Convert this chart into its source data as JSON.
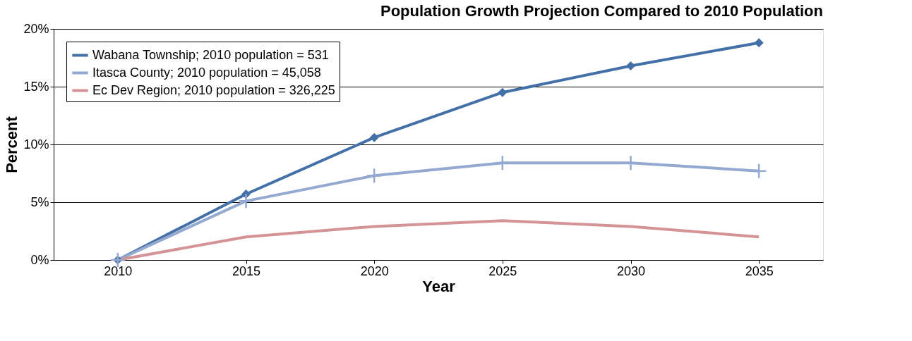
{
  "chart_data": {
    "type": "line",
    "title": "Population Growth Projection Compared to 2010 Population",
    "xlabel": "Year",
    "ylabel": "Percent",
    "categories": [
      "2010",
      "2015",
      "2020",
      "2025",
      "2030",
      "2035"
    ],
    "series": [
      {
        "name": "Wabana Township; 2010 population = 531",
        "color": "#4470a8",
        "marker": "diamond",
        "values": [
          0,
          5.7,
          10.6,
          14.5,
          16.8,
          18.8
        ]
      },
      {
        "name": "Itasca County; 2010 population = 45,058",
        "color": "#93a9d0",
        "marker": "cross",
        "values": [
          0,
          5.1,
          7.3,
          8.4,
          8.4,
          7.7
        ]
      },
      {
        "name": "Ec Dev Region; 2010 population = 326,225",
        "color": "#d49394",
        "marker": "none",
        "values": [
          0,
          2.0,
          2.9,
          3.4,
          2.9,
          2.0
        ]
      }
    ],
    "ylim": [
      0,
      20
    ],
    "yticks": [
      {
        "value": 0,
        "label": "0%"
      },
      {
        "value": 5,
        "label": "5%"
      },
      {
        "value": 10,
        "label": "10%"
      },
      {
        "value": 15,
        "label": "15%"
      },
      {
        "value": 20,
        "label": "20%"
      }
    ],
    "grid": "y",
    "legend": "top left",
    "line_style": "solid"
  }
}
